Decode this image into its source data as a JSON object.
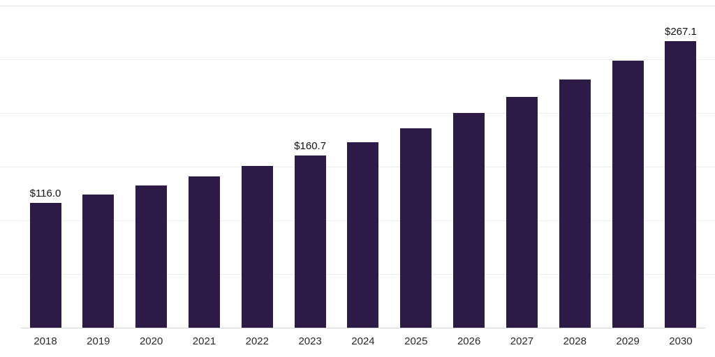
{
  "chart_data": {
    "type": "bar",
    "categories": [
      "2018",
      "2019",
      "2020",
      "2021",
      "2022",
      "2023",
      "2024",
      "2025",
      "2026",
      "2027",
      "2028",
      "2029",
      "2030"
    ],
    "values": [
      116.0,
      123.8,
      132.2,
      141.1,
      150.6,
      160.7,
      172.8,
      185.8,
      199.8,
      214.9,
      231.0,
      248.4,
      267.1
    ],
    "data_labels": {
      "2018": "$116.0",
      "2023": "$160.7",
      "2030": "$267.1"
    },
    "title": "",
    "xlabel": "",
    "ylabel": "",
    "ylim": [
      0,
      300
    ],
    "gridline_step": 50,
    "grid": "horizontal-faint",
    "legend": "none",
    "colors": {
      "bar": "#2e1a47",
      "value_label": "#111111",
      "tick_label": "#2a2a2a",
      "gridline": "#ededed",
      "top_gridline": "#e2e2e2",
      "axis_line": "#d6d6d6",
      "background": "#ffffff"
    }
  }
}
